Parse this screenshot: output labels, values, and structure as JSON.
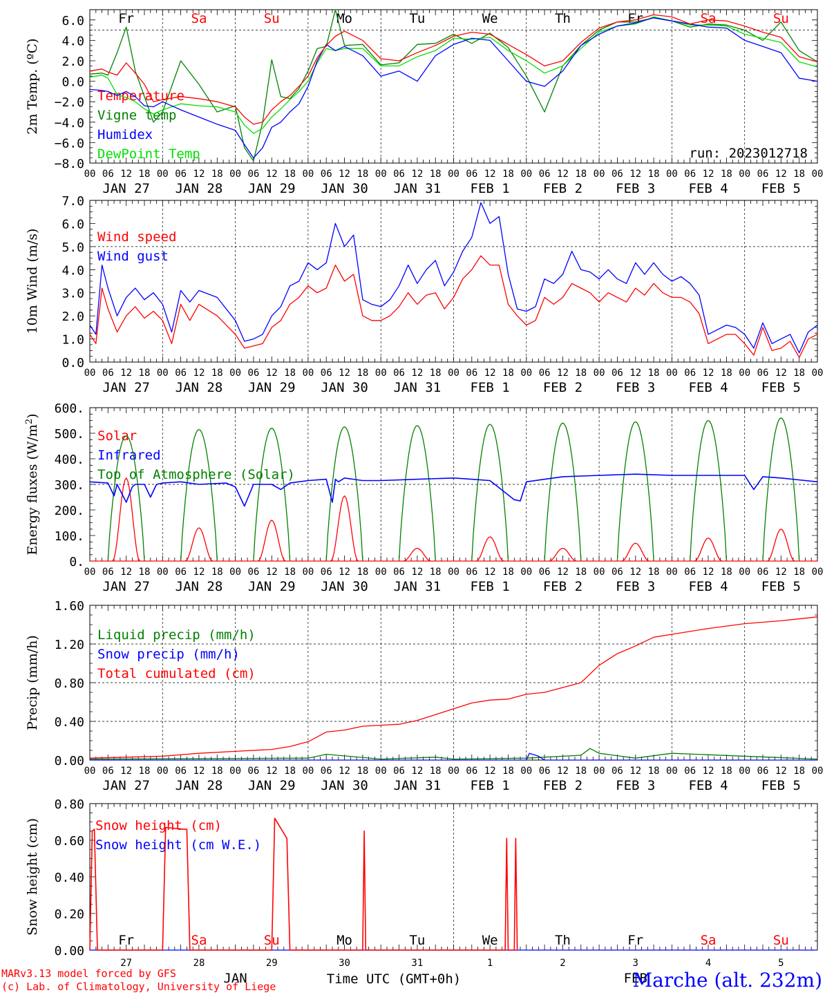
{
  "day_names": [
    "Fr",
    "Sa",
    "Su",
    "Mo",
    "Tu",
    "We",
    "Th",
    "Fr",
    "Sa",
    "Su"
  ],
  "date_labels": [
    "JAN 27",
    "JAN 28",
    "JAN 29",
    "JAN 30",
    "JAN 31",
    "FEB  1",
    "FEB  2",
    "FEB  3",
    "FEB  4",
    "FEB  5"
  ],
  "hour_labels": [
    "00",
    "06",
    "12",
    "18"
  ],
  "colors": {
    "red": "#ff0000",
    "green": "#008000",
    "blue": "#0000ff",
    "lightgreen": "#00e000",
    "weekend": "#ff0000",
    "weekday": "#000000"
  },
  "panels": {
    "temp": {
      "ylabel": "2m Temp. (ºC)",
      "tick_labels": [
        "6.0",
        "4.0",
        "2.0",
        "0.0",
        "−2.0",
        "−4.0",
        "−6.0",
        "−8.0"
      ],
      "legend": [
        "Temperature",
        "Vigne temp",
        "Humidex",
        "DewPoint Temp"
      ],
      "run_label": "run: 2023012718"
    },
    "wind": {
      "ylabel": "10m Wind (m/s)",
      "tick_labels": [
        "7.0",
        "6.0",
        "5.0",
        "4.0",
        "3.0",
        "2.0",
        "1.0",
        "0.0"
      ],
      "legend": [
        "Wind speed",
        "Wind gust"
      ]
    },
    "energy": {
      "ylabel_main": "Energy fluxes (W/m",
      "ylabel_sup": "2",
      "ylabel_end": ")",
      "tick_labels": [
        "600.",
        "500.",
        "400.",
        "300.",
        "200.",
        "100.",
        "0."
      ],
      "legend": [
        "Solar",
        "Infrared",
        "Top of Atmosphere (Solar)"
      ]
    },
    "precip": {
      "ylabel": "Precip (mm/h)",
      "tick_labels": [
        "1.60",
        "1.20",
        "0.80",
        "0.40",
        "0.00"
      ],
      "legend": [
        "Liquid precip (mm/h)",
        "Snow precip (mm/h)",
        "Total cumulated (cm)"
      ]
    },
    "snow": {
      "ylabel": "Snow height (cm)",
      "tick_labels": [
        "0.80",
        "0.60",
        "0.40",
        "0.20",
        "0.00"
      ],
      "legend": [
        "Snow height (cm)",
        "Snow height (cm W.E.)"
      ],
      "day_numbers": [
        "27",
        "28",
        "29",
        "30",
        "31",
        "1",
        "2",
        "3",
        "4",
        "5"
      ],
      "month_jan": "JAN",
      "month_feb": "FEB"
    }
  },
  "footer": {
    "xaxis_label": "Time UTC (GMT+0h)",
    "credit1": "MARv3.13 model forced by GFS",
    "credit2": "(c) Lab. of Climatology, University of Liege",
    "station": "Marche (alt. 232m)"
  },
  "chart_data": [
    {
      "type": "line",
      "title": "",
      "ylabel": "2m Temp. (ºC)",
      "ylim": [
        -8,
        7
      ],
      "x_unit": "hours since 2023-01-27 00 UTC",
      "x": [
        0,
        4,
        6,
        9,
        12,
        15,
        18,
        21,
        24,
        30,
        36,
        42,
        48,
        51,
        54,
        57,
        60,
        63,
        66,
        69,
        72,
        75,
        78,
        81,
        84,
        90,
        96,
        102,
        108,
        114,
        120,
        126,
        132,
        138,
        144,
        150,
        156,
        162,
        168,
        174,
        180,
        186,
        192,
        198,
        204,
        210,
        216,
        222,
        228,
        234,
        240
      ],
      "series": [
        {
          "name": "Temperature",
          "values": [
            1.0,
            1.2,
            0.9,
            0.6,
            1.8,
            0.8,
            -0.3,
            -2.0,
            -1.8,
            -1.5,
            -1.7,
            -2.0,
            -2.5,
            -3.5,
            -4.2,
            -4.0,
            -2.8,
            -2.0,
            -1.4,
            -0.5,
            0.5,
            2.3,
            3.5,
            4.4,
            4.9,
            4.0,
            2.2,
            2.0,
            2.8,
            3.5,
            4.4,
            4.8,
            4.6,
            3.6,
            2.6,
            1.5,
            2.0,
            3.8,
            5.2,
            5.8,
            6.0,
            6.5,
            6.3,
            5.6,
            6.0,
            5.9,
            5.4,
            4.8,
            4.3,
            2.4,
            1.9
          ]
        },
        {
          "name": "Vigne temp",
          "values": [
            0.7,
            0.8,
            0.6,
            2.8,
            5.3,
            1.0,
            -1.5,
            -4.0,
            -3.0,
            2.0,
            -0.3,
            -3.0,
            -2.4,
            -6.5,
            -7.8,
            -4.0,
            2.1,
            -1.5,
            -1.7,
            -0.7,
            1.0,
            3.2,
            3.4,
            7.0,
            3.5,
            3.6,
            1.6,
            1.8,
            3.6,
            3.7,
            4.6,
            3.7,
            4.7,
            3.3,
            0.5,
            -3.0,
            1.5,
            3.5,
            5.0,
            5.8,
            5.8,
            6.2,
            5.9,
            5.3,
            5.6,
            5.5,
            5.0,
            4.0,
            5.8,
            3.0,
            1.9
          ]
        },
        {
          "name": "Humidex",
          "values": [
            -0.8,
            -0.9,
            -1.0,
            -1.4,
            -1.0,
            -1.5,
            -2.4,
            -2.5,
            -2.0,
            -2.8,
            -3.5,
            -4.2,
            -4.8,
            -6.2,
            -7.5,
            -6.5,
            -4.5,
            -4.0,
            -3.0,
            -2.2,
            -0.5,
            2.0,
            3.6,
            3.0,
            3.4,
            2.5,
            0.5,
            1.0,
            0.0,
            2.5,
            3.6,
            4.2,
            4.0,
            2.0,
            0.0,
            -0.5,
            1.0,
            3.5,
            4.6,
            5.4,
            5.7,
            6.2,
            5.9,
            5.6,
            5.3,
            5.2,
            4.0,
            3.4,
            2.8,
            0.3,
            0.0
          ]
        },
        {
          "name": "DewPoint Temp",
          "values": [
            0.4,
            0.6,
            0.3,
            -1.3,
            -1.6,
            -2.0,
            -2.7,
            -3.2,
            -2.8,
            -2.2,
            -2.4,
            -2.5,
            -3.0,
            -4.3,
            -5.1,
            -4.6,
            -3.5,
            -2.7,
            -1.8,
            -1.0,
            0.0,
            1.8,
            3.2,
            3.0,
            3.2,
            3.2,
            1.5,
            1.5,
            2.4,
            3.0,
            4.2,
            4.1,
            4.3,
            3.0,
            2.0,
            0.8,
            1.5,
            3.2,
            4.8,
            5.4,
            5.6,
            6.3,
            5.9,
            5.5,
            5.5,
            5.4,
            4.6,
            4.2,
            3.8,
            1.9,
            1.4
          ]
        }
      ]
    },
    {
      "type": "line",
      "title": "",
      "ylabel": "10m Wind (m/s)",
      "ylim": [
        0,
        7
      ],
      "x_unit": "hours since 2023-01-27 00 UTC",
      "x": [
        0,
        2,
        4,
        6,
        9,
        12,
        15,
        18,
        21,
        24,
        27,
        30,
        33,
        36,
        42,
        48,
        51,
        54,
        57,
        60,
        63,
        66,
        69,
        72,
        75,
        78,
        81,
        84,
        87,
        90,
        93,
        96,
        99,
        102,
        105,
        108,
        111,
        114,
        117,
        120,
        123,
        126,
        129,
        132,
        135,
        138,
        141,
        144,
        147,
        150,
        153,
        156,
        159,
        162,
        165,
        168,
        171,
        174,
        177,
        180,
        183,
        186,
        189,
        192,
        195,
        198,
        201,
        204,
        207,
        210,
        213,
        216,
        219,
        222,
        225,
        228,
        231,
        234,
        237,
        240
      ],
      "series": [
        {
          "name": "Wind speed",
          "values": [
            1.2,
            0.8,
            3.2,
            2.3,
            1.3,
            2.0,
            2.4,
            1.9,
            2.2,
            1.8,
            0.8,
            2.5,
            1.8,
            2.5,
            2.0,
            1.2,
            0.6,
            0.7,
            0.8,
            1.5,
            1.8,
            2.5,
            2.8,
            3.3,
            3.0,
            3.2,
            4.2,
            3.5,
            3.8,
            2.0,
            1.8,
            1.8,
            2.0,
            2.4,
            3.0,
            2.5,
            2.9,
            3.0,
            2.3,
            2.8,
            3.6,
            4.0,
            4.6,
            4.2,
            4.2,
            2.5,
            2.0,
            1.6,
            1.8,
            2.8,
            2.5,
            2.8,
            3.4,
            3.2,
            3.0,
            2.6,
            3.0,
            2.8,
            2.6,
            3.2,
            2.9,
            3.4,
            3.0,
            2.8,
            2.8,
            2.6,
            2.1,
            0.8,
            1.0,
            1.2,
            1.2,
            0.8,
            0.3,
            1.5,
            0.5,
            0.6,
            0.9,
            0.2,
            1.0,
            1.2
          ]
        },
        {
          "name": "Wind gust",
          "values": [
            1.6,
            1.2,
            4.2,
            3.2,
            2.0,
            2.8,
            3.2,
            2.7,
            3.0,
            2.5,
            1.3,
            3.1,
            2.6,
            3.1,
            2.8,
            1.8,
            0.9,
            1.0,
            1.2,
            2.0,
            2.4,
            3.3,
            3.5,
            4.3,
            4.0,
            4.3,
            6.0,
            5.0,
            5.5,
            2.7,
            2.5,
            2.4,
            2.7,
            3.3,
            4.2,
            3.4,
            4.0,
            4.4,
            3.3,
            3.9,
            4.8,
            5.4,
            6.9,
            6.0,
            6.3,
            3.8,
            2.3,
            2.2,
            2.4,
            3.6,
            3.4,
            3.8,
            4.8,
            4.0,
            3.9,
            3.6,
            4.0,
            3.6,
            3.4,
            4.3,
            3.8,
            4.3,
            3.8,
            3.5,
            3.7,
            3.4,
            2.9,
            1.2,
            1.4,
            1.6,
            1.5,
            1.2,
            0.6,
            1.7,
            0.8,
            1.0,
            1.2,
            0.4,
            1.3,
            1.6
          ]
        }
      ]
    },
    {
      "type": "line",
      "title": "",
      "ylabel": "Energy fluxes (W/m2)",
      "ylim": [
        0,
        600
      ],
      "x_unit": "hours since 2023-01-27 00 UTC",
      "solar_peak_hour": 12,
      "days": [
        "JAN 27",
        "JAN 28",
        "JAN 29",
        "JAN 30",
        "JAN 31",
        "FEB  1",
        "FEB  2",
        "FEB  3",
        "FEB  4",
        "FEB  5"
      ],
      "series": [
        {
          "name": "Solar",
          "peak_values": [
            325,
            130,
            160,
            255,
            50,
            95,
            50,
            70,
            90,
            125
          ]
        },
        {
          "name": "Top of Atmosphere (Solar)",
          "peak_values": [
            490,
            515,
            520,
            525,
            530,
            535,
            540,
            545,
            550,
            560
          ]
        },
        {
          "name": "Infrared",
          "x": [
            0,
            6,
            8,
            9,
            12,
            14,
            15,
            18,
            20,
            22,
            24,
            30,
            36,
            45,
            48,
            51,
            54,
            60,
            63,
            66,
            72,
            78,
            80,
            81,
            82,
            84,
            90,
            96,
            108,
            120,
            126,
            132,
            140,
            142,
            144,
            150,
            156,
            168,
            180,
            192,
            204,
            216,
            219,
            222,
            228,
            240
          ],
          "values": [
            310,
            305,
            255,
            300,
            230,
            290,
            300,
            300,
            250,
            300,
            305,
            310,
            300,
            305,
            290,
            215,
            300,
            300,
            280,
            305,
            315,
            320,
            230,
            320,
            310,
            325,
            315,
            315,
            320,
            325,
            320,
            315,
            240,
            235,
            310,
            320,
            330,
            335,
            340,
            335,
            335,
            335,
            280,
            330,
            325,
            310
          ]
        }
      ]
    },
    {
      "type": "line",
      "title": "",
      "ylabel": "Precip (mm/h)",
      "ylim": [
        0,
        1.6
      ],
      "x_unit": "hours since 2023-01-27 00 UTC",
      "series": [
        {
          "name": "Total cumulated (cm)",
          "x": [
            0,
            12,
            24,
            36,
            48,
            60,
            66,
            72,
            78,
            84,
            90,
            96,
            102,
            108,
            114,
            120,
            126,
            132,
            138,
            144,
            150,
            156,
            162,
            168,
            174,
            180,
            186,
            192,
            204,
            216,
            228,
            240
          ],
          "values": [
            0.02,
            0.03,
            0.04,
            0.07,
            0.09,
            0.11,
            0.14,
            0.19,
            0.29,
            0.31,
            0.35,
            0.36,
            0.37,
            0.41,
            0.47,
            0.53,
            0.59,
            0.62,
            0.63,
            0.68,
            0.7,
            0.75,
            0.8,
            0.98,
            1.1,
            1.18,
            1.27,
            1.3,
            1.36,
            1.41,
            1.44,
            1.48
          ]
        },
        {
          "name": "Liquid precip (mm/h)",
          "x": [
            0,
            72,
            78,
            96,
            114,
            120,
            144,
            162,
            165,
            168,
            180,
            192,
            240
          ],
          "values": [
            0.01,
            0.02,
            0.06,
            0.01,
            0.03,
            0.01,
            0.02,
            0.05,
            0.12,
            0.07,
            0.02,
            0.07,
            0.01
          ]
        },
        {
          "name": "Snow precip (mm/h)",
          "x": [
            0,
            144,
            145,
            148,
            150,
            160,
            240
          ],
          "values": [
            0.0,
            0.0,
            0.07,
            0.04,
            0.0,
            0.0,
            0.0
          ]
        }
      ]
    },
    {
      "type": "line",
      "title": "",
      "ylabel": "Snow height (cm)",
      "ylim": [
        0,
        0.8
      ],
      "x_unit": "hours since 2023-01-27 00 UTC",
      "series": [
        {
          "name": "Snow height (cm)",
          "x": [
            0,
            0.8,
            1.5,
            2.5,
            24,
            25,
            31,
            32,
            33,
            60,
            61,
            65,
            66,
            90,
            90.5,
            91,
            137,
            137.5,
            138,
            140,
            140.5,
            141
          ],
          "values": [
            0,
            0.65,
            0.66,
            0,
            0,
            0.67,
            0.66,
            0.66,
            0,
            0,
            0.72,
            0.61,
            0,
            0,
            0.65,
            0,
            0,
            0.61,
            0,
            0,
            0.61,
            0
          ]
        },
        {
          "name": "Snow height (cm W.E.)",
          "x": [
            0,
            240
          ],
          "values": [
            0,
            0
          ]
        }
      ]
    }
  ]
}
